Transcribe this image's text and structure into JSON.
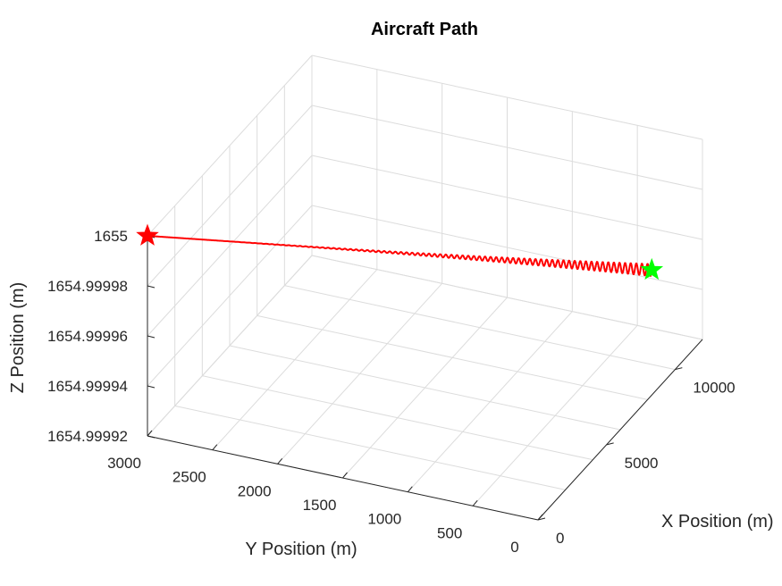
{
  "chart_data": {
    "type": "line3d",
    "title": "Aircraft Path",
    "xlabel": "X Position (m)",
    "ylabel": "Y Position (m)",
    "zlabel": "Z Position (m)",
    "xlim": [
      0,
      12000
    ],
    "ylim": [
      0,
      3000
    ],
    "zlim": [
      1654.99992,
      1655
    ],
    "x_ticks": [
      0,
      5000,
      10000
    ],
    "x_tick_labels": [
      "0",
      "5000",
      "10000"
    ],
    "y_ticks": [
      0,
      500,
      1000,
      1500,
      2000,
      2500,
      3000
    ],
    "y_tick_labels": [
      "0",
      "500",
      "1000",
      "1500",
      "2000",
      "2500",
      "3000"
    ],
    "z_ticks": [
      1654.99992,
      1654.99994,
      1654.99996,
      1654.99998,
      1655
    ],
    "z_tick_labels": [
      "1654.99992",
      "1654.99994",
      "1654.99996",
      "1654.99998",
      "1655"
    ],
    "grid": true,
    "series": [
      {
        "color": "#ff0000",
        "start": {
          "x": 0,
          "y": 3000,
          "z": 1655.0
        },
        "end": {
          "x": 8300,
          "y": 0,
          "z": 1654.99997
        },
        "oscillation_amplitude_z": 2.5e-06
      }
    ],
    "markers": [
      {
        "shape": "star",
        "color": "#ff0000",
        "x": 0,
        "y": 3000,
        "z": 1655.0
      },
      {
        "shape": "star",
        "color": "#00ff00",
        "x": 8300,
        "y": 0,
        "z": 1654.99997
      }
    ]
  }
}
